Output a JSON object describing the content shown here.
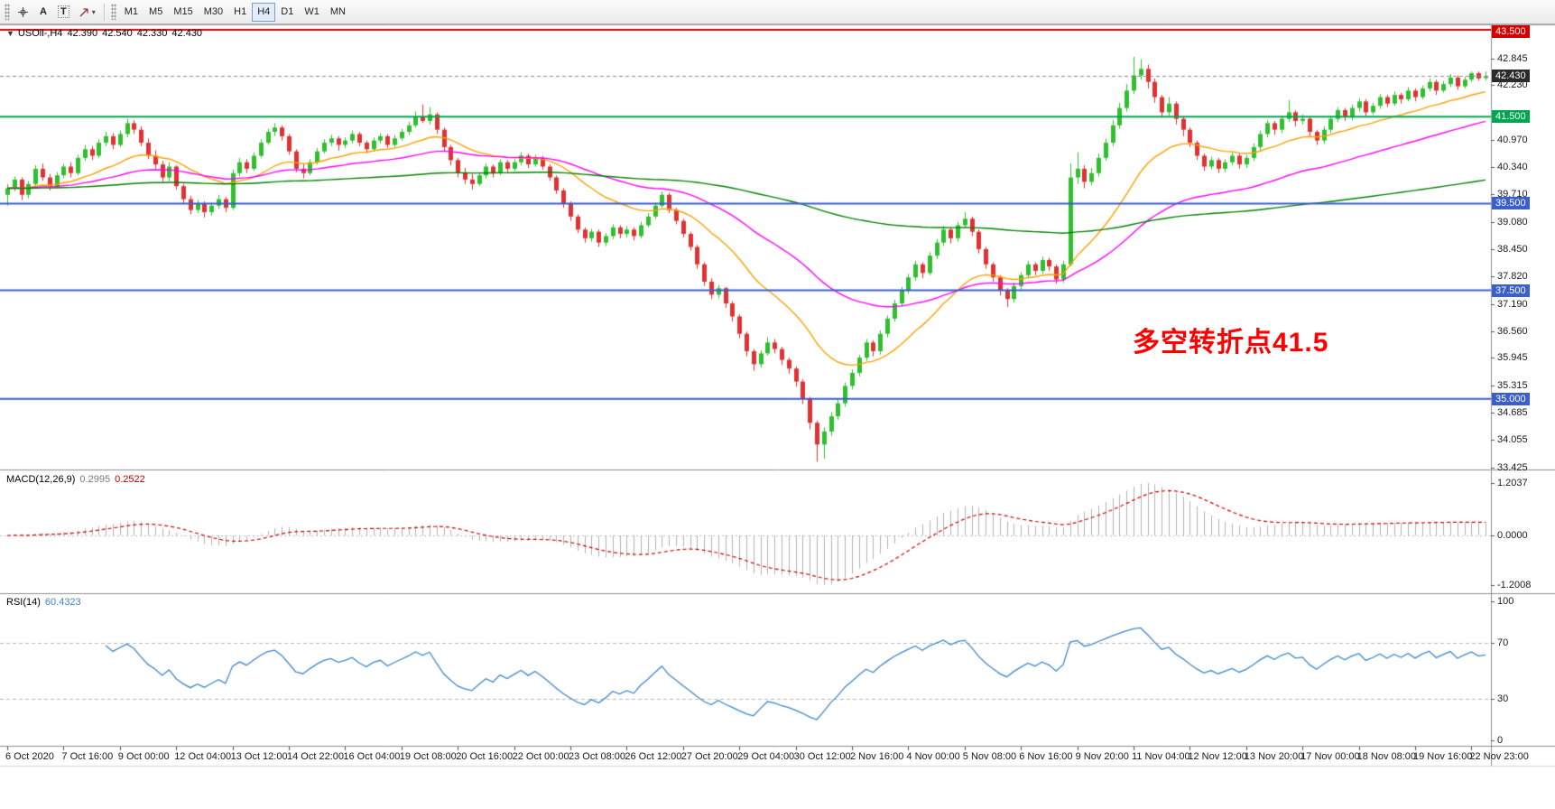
{
  "toolbar": {
    "tools": {
      "text_tool": "A",
      "label_tool": "T"
    },
    "timeframes": [
      "M1",
      "M5",
      "M15",
      "M30",
      "H1",
      "H4",
      "D1",
      "W1",
      "MN"
    ],
    "active_timeframe": "H4"
  },
  "chart": {
    "header": {
      "symbol_period": "USOil-,H4",
      "open": "42.390",
      "high": "42.540",
      "low": "42.330",
      "close": "42.430"
    },
    "annotation": {
      "text": "多空转折点41.5",
      "color": "#ff0000"
    }
  },
  "chart_data": {
    "type": "candlestick",
    "symbol": "USOil-",
    "period": "H4",
    "title": "USOil-,H4 42.390 42.540 42.330 42.430",
    "colors": {
      "up": "#2fbf2f",
      "down": "#e03232"
    },
    "price_axis": {
      "min": 33.425,
      "max": 43.5,
      "ticks": [
        "42.845",
        "42.230",
        "40.970",
        "40.340",
        "39.710",
        "39.080",
        "38.450",
        "37.820",
        "37.190",
        "36.560",
        "35.945",
        "35.315",
        "34.685",
        "34.055",
        "33.425"
      ],
      "boxes": [
        {
          "label": "43.500",
          "color": "#d40000"
        },
        {
          "label": "42.430",
          "color": "#2b2b2b"
        },
        {
          "label": "41.500",
          "color": "#00a651"
        },
        {
          "label": "39.500",
          "color": "#3a5fcd"
        },
        {
          "label": "37.500",
          "color": "#3a5fcd"
        },
        {
          "label": "35.000",
          "color": "#3a5fcd"
        }
      ]
    },
    "hlines": [
      {
        "value": 43.5,
        "color": "#d40000",
        "width": 2,
        "dash": false
      },
      {
        "value": 42.43,
        "color": "#888888",
        "width": 1,
        "dash": true
      },
      {
        "value": 41.5,
        "color": "#00a651",
        "width": 2,
        "dash": false
      },
      {
        "value": 39.5,
        "color": "#3a5fcd",
        "width": 2,
        "dash": false
      },
      {
        "value": 37.5,
        "color": "#3a5fcd",
        "width": 2,
        "dash": false
      },
      {
        "value": 35.0,
        "color": "#3a5fcd",
        "width": 2,
        "dash": false
      }
    ],
    "moving_averages": [
      {
        "period": 20,
        "color": "#ffa000"
      },
      {
        "period": 50,
        "color": "#ff00ff"
      },
      {
        "period": 200,
        "color": "#008000"
      }
    ],
    "bars_per_label": 8,
    "time_labels": [
      "6 Oct 2020",
      "7 Oct 16:00",
      "9 Oct 00:00",
      "12 Oct 04:00",
      "13 Oct 12:00",
      "14 Oct 22:00",
      "16 Oct 04:00",
      "19 Oct 08:00",
      "20 Oct 16:00",
      "22 Oct 00:00",
      "23 Oct 08:00",
      "26 Oct 12:00",
      "27 Oct 20:00",
      "29 Oct 04:00",
      "30 Oct 12:00",
      "2 Nov 16:00",
      "4 Nov 00:00",
      "5 Nov 08:00",
      "6 Nov 16:00",
      "9 Nov 20:00",
      "11 Nov 04:00",
      "12 Nov 12:00",
      "13 Nov 20:00",
      "17 Nov 00:00",
      "18 Nov 08:00",
      "19 Nov 16:00",
      "22 Nov 23:00"
    ],
    "ohlc": [
      [
        39.7,
        39.95,
        39.45,
        39.85
      ],
      [
        39.85,
        40.12,
        39.78,
        40.05
      ],
      [
        40.05,
        40.1,
        39.58,
        39.7
      ],
      [
        39.7,
        40.02,
        39.62,
        39.95
      ],
      [
        39.95,
        40.38,
        39.9,
        40.3
      ],
      [
        40.3,
        40.42,
        40.02,
        40.1
      ],
      [
        40.1,
        40.18,
        39.8,
        39.9
      ],
      [
        39.9,
        40.22,
        39.85,
        40.15
      ],
      [
        40.15,
        40.42,
        40.08,
        40.35
      ],
      [
        40.35,
        40.45,
        40.1,
        40.2
      ],
      [
        40.2,
        40.62,
        40.15,
        40.55
      ],
      [
        40.55,
        40.85,
        40.48,
        40.75
      ],
      [
        40.75,
        40.82,
        40.5,
        40.6
      ],
      [
        40.6,
        40.98,
        40.55,
        40.9
      ],
      [
        40.9,
        41.15,
        40.82,
        41.05
      ],
      [
        41.05,
        41.12,
        40.75,
        40.85
      ],
      [
        40.85,
        41.18,
        40.8,
        41.1
      ],
      [
        41.1,
        41.45,
        41.02,
        41.35
      ],
      [
        41.35,
        41.42,
        41.1,
        41.2
      ],
      [
        41.2,
        41.28,
        40.82,
        40.9
      ],
      [
        40.9,
        41.0,
        40.52,
        40.6
      ],
      [
        40.6,
        40.72,
        40.3,
        40.4
      ],
      [
        40.4,
        40.48,
        40.0,
        40.1
      ],
      [
        40.1,
        40.45,
        40.02,
        40.35
      ],
      [
        40.35,
        40.38,
        39.82,
        39.9
      ],
      [
        39.9,
        39.95,
        39.5,
        39.6
      ],
      [
        39.6,
        39.68,
        39.25,
        39.35
      ],
      [
        39.35,
        39.58,
        39.28,
        39.5
      ],
      [
        39.5,
        39.55,
        39.18,
        39.3
      ],
      [
        39.3,
        39.52,
        39.22,
        39.45
      ],
      [
        39.45,
        39.7,
        39.38,
        39.6
      ],
      [
        39.6,
        39.65,
        39.3,
        39.4
      ],
      [
        39.4,
        40.28,
        39.35,
        40.2
      ],
      [
        40.2,
        40.55,
        40.12,
        40.45
      ],
      [
        40.45,
        40.52,
        40.2,
        40.3
      ],
      [
        40.3,
        40.68,
        40.25,
        40.6
      ],
      [
        40.6,
        40.98,
        40.55,
        40.9
      ],
      [
        40.9,
        41.22,
        40.85,
        41.15
      ],
      [
        41.15,
        41.35,
        41.05,
        41.25
      ],
      [
        41.25,
        41.3,
        40.95,
        41.05
      ],
      [
        41.05,
        41.1,
        40.62,
        40.7
      ],
      [
        40.7,
        40.75,
        40.22,
        40.3
      ],
      [
        40.3,
        40.42,
        40.08,
        40.2
      ],
      [
        40.2,
        40.52,
        40.15,
        40.45
      ],
      [
        40.45,
        40.78,
        40.4,
        40.7
      ],
      [
        40.7,
        40.98,
        40.65,
        40.9
      ],
      [
        40.9,
        41.08,
        40.82,
        41.0
      ],
      [
        41.0,
        41.05,
        40.72,
        40.85
      ],
      [
        40.85,
        41.02,
        40.78,
        40.95
      ],
      [
        40.95,
        41.18,
        40.88,
        41.1
      ],
      [
        41.1,
        41.15,
        40.82,
        40.9
      ],
      [
        40.9,
        40.95,
        40.65,
        40.75
      ],
      [
        40.75,
        41.02,
        40.7,
        40.95
      ],
      [
        40.95,
        41.12,
        40.88,
        41.05
      ],
      [
        41.05,
        41.1,
        40.78,
        40.85
      ],
      [
        40.85,
        41.08,
        40.8,
        41.0
      ],
      [
        41.0,
        41.22,
        40.95,
        41.15
      ],
      [
        41.15,
        41.38,
        41.08,
        41.3
      ],
      [
        41.3,
        41.62,
        41.25,
        41.5
      ],
      [
        41.5,
        41.78,
        41.35,
        41.4
      ],
      [
        41.4,
        41.72,
        41.32,
        41.55
      ],
      [
        41.55,
        41.6,
        41.1,
        41.2
      ],
      [
        41.2,
        41.25,
        40.7,
        40.8
      ],
      [
        40.8,
        40.85,
        40.38,
        40.5
      ],
      [
        40.5,
        40.55,
        40.1,
        40.2
      ],
      [
        40.2,
        40.32,
        39.95,
        40.05
      ],
      [
        40.05,
        40.18,
        39.82,
        39.95
      ],
      [
        39.95,
        40.22,
        39.9,
        40.15
      ],
      [
        40.15,
        40.42,
        40.08,
        40.35
      ],
      [
        40.35,
        40.4,
        40.1,
        40.2
      ],
      [
        40.2,
        40.52,
        40.15,
        40.45
      ],
      [
        40.45,
        40.5,
        40.22,
        40.3
      ],
      [
        40.3,
        40.52,
        40.25,
        40.45
      ],
      [
        40.45,
        40.68,
        40.38,
        40.6
      ],
      [
        40.6,
        40.65,
        40.32,
        40.4
      ],
      [
        40.4,
        40.62,
        40.35,
        40.55
      ],
      [
        40.55,
        40.6,
        40.28,
        40.35
      ],
      [
        40.35,
        40.4,
        40.02,
        40.1
      ],
      [
        40.1,
        40.15,
        39.72,
        39.8
      ],
      [
        39.8,
        39.85,
        39.4,
        39.5
      ],
      [
        39.5,
        39.55,
        39.1,
        39.2
      ],
      [
        39.2,
        39.25,
        38.82,
        38.9
      ],
      [
        38.9,
        38.95,
        38.6,
        38.7
      ],
      [
        38.7,
        38.92,
        38.62,
        38.85
      ],
      [
        38.85,
        38.9,
        38.5,
        38.6
      ],
      [
        38.6,
        38.82,
        38.52,
        38.75
      ],
      [
        38.75,
        39.02,
        38.68,
        38.95
      ],
      [
        38.95,
        39.0,
        38.7,
        38.8
      ],
      [
        38.8,
        38.98,
        38.72,
        38.9
      ],
      [
        38.9,
        38.95,
        38.65,
        38.75
      ],
      [
        38.75,
        39.08,
        38.7,
        39.0
      ],
      [
        39.0,
        39.28,
        38.95,
        39.2
      ],
      [
        39.2,
        39.52,
        39.15,
        39.45
      ],
      [
        39.45,
        39.78,
        39.4,
        39.7
      ],
      [
        39.7,
        39.75,
        39.28,
        39.35
      ],
      [
        39.35,
        39.4,
        39.02,
        39.1
      ],
      [
        39.1,
        39.15,
        38.72,
        38.8
      ],
      [
        38.8,
        38.85,
        38.42,
        38.5
      ],
      [
        38.5,
        38.55,
        38.0,
        38.1
      ],
      [
        38.1,
        38.15,
        37.6,
        37.7
      ],
      [
        37.7,
        37.78,
        37.3,
        37.4
      ],
      [
        37.4,
        37.62,
        37.32,
        37.55
      ],
      [
        37.55,
        37.58,
        37.1,
        37.2
      ],
      [
        37.2,
        37.25,
        36.78,
        36.9
      ],
      [
        36.9,
        36.95,
        36.4,
        36.5
      ],
      [
        36.5,
        36.55,
        35.98,
        36.1
      ],
      [
        36.1,
        36.15,
        35.65,
        35.8
      ],
      [
        35.8,
        36.12,
        35.72,
        36.05
      ],
      [
        36.05,
        36.42,
        36.0,
        36.3
      ],
      [
        36.3,
        36.38,
        36.05,
        36.15
      ],
      [
        36.15,
        36.2,
        35.78,
        35.9
      ],
      [
        35.9,
        35.95,
        35.58,
        35.7
      ],
      [
        35.7,
        35.75,
        35.28,
        35.4
      ],
      [
        35.4,
        35.45,
        34.88,
        35.0
      ],
      [
        35.0,
        35.05,
        34.3,
        34.45
      ],
      [
        34.45,
        34.5,
        33.55,
        33.95
      ],
      [
        33.95,
        34.35,
        33.62,
        34.25
      ],
      [
        34.25,
        34.7,
        34.15,
        34.6
      ],
      [
        34.6,
        35.0,
        34.52,
        34.9
      ],
      [
        34.9,
        35.38,
        34.82,
        35.3
      ],
      [
        35.3,
        35.68,
        35.22,
        35.6
      ],
      [
        35.6,
        36.02,
        35.52,
        35.95
      ],
      [
        35.95,
        36.38,
        35.88,
        36.3
      ],
      [
        36.3,
        36.35,
        35.98,
        36.1
      ],
      [
        36.1,
        36.58,
        36.02,
        36.5
      ],
      [
        36.5,
        36.92,
        36.42,
        36.85
      ],
      [
        36.85,
        37.28,
        36.78,
        37.2
      ],
      [
        37.2,
        37.58,
        37.12,
        37.5
      ],
      [
        37.5,
        37.88,
        37.42,
        37.8
      ],
      [
        37.8,
        38.18,
        37.72,
        38.1
      ],
      [
        38.1,
        38.15,
        37.78,
        37.9
      ],
      [
        37.9,
        38.38,
        37.85,
        38.3
      ],
      [
        38.3,
        38.68,
        38.22,
        38.6
      ],
      [
        38.6,
        38.98,
        38.52,
        38.9
      ],
      [
        38.9,
        38.95,
        38.58,
        38.7
      ],
      [
        38.7,
        39.08,
        38.62,
        39.0
      ],
      [
        39.0,
        39.3,
        38.95,
        39.15
      ],
      [
        39.15,
        39.2,
        38.75,
        38.85
      ],
      [
        38.85,
        38.9,
        38.35,
        38.45
      ],
      [
        38.45,
        38.5,
        38.0,
        38.1
      ],
      [
        38.1,
        38.15,
        37.7,
        37.8
      ],
      [
        37.8,
        37.85,
        37.38,
        37.5
      ],
      [
        37.5,
        37.55,
        37.12,
        37.3
      ],
      [
        37.3,
        37.68,
        37.22,
        37.6
      ],
      [
        37.6,
        37.92,
        37.52,
        37.85
      ],
      [
        37.85,
        38.18,
        37.78,
        38.1
      ],
      [
        38.1,
        38.15,
        37.85,
        37.95
      ],
      [
        37.95,
        38.28,
        37.88,
        38.2
      ],
      [
        38.2,
        38.25,
        37.95,
        38.05
      ],
      [
        38.05,
        38.1,
        37.65,
        37.75
      ],
      [
        37.75,
        38.18,
        37.68,
        38.1
      ],
      [
        38.1,
        40.42,
        38.05,
        40.1
      ],
      [
        40.1,
        40.68,
        39.95,
        40.3
      ],
      [
        40.3,
        40.38,
        39.85,
        40.0
      ],
      [
        40.0,
        40.32,
        39.92,
        40.2
      ],
      [
        40.2,
        40.65,
        40.12,
        40.55
      ],
      [
        40.55,
        41.0,
        40.48,
        40.9
      ],
      [
        40.9,
        41.42,
        40.82,
        41.3
      ],
      [
        41.3,
        41.82,
        41.22,
        41.7
      ],
      [
        41.7,
        42.25,
        41.62,
        42.1
      ],
      [
        42.1,
        42.88,
        42.02,
        42.45
      ],
      [
        42.45,
        42.82,
        42.35,
        42.6
      ],
      [
        42.6,
        42.7,
        42.15,
        42.3
      ],
      [
        42.3,
        42.38,
        41.82,
        41.95
      ],
      [
        41.95,
        42.0,
        41.48,
        41.6
      ],
      [
        41.6,
        41.95,
        41.52,
        41.8
      ],
      [
        41.8,
        41.85,
        41.32,
        41.45
      ],
      [
        41.45,
        41.5,
        41.05,
        41.2
      ],
      [
        41.2,
        41.25,
        40.8,
        40.9
      ],
      [
        40.9,
        40.95,
        40.5,
        40.6
      ],
      [
        40.6,
        40.65,
        40.25,
        40.35
      ],
      [
        40.35,
        40.58,
        40.28,
        40.5
      ],
      [
        40.5,
        40.55,
        40.2,
        40.3
      ],
      [
        40.3,
        40.52,
        40.22,
        40.45
      ],
      [
        40.45,
        40.68,
        40.38,
        40.6
      ],
      [
        40.6,
        40.65,
        40.3,
        40.4
      ],
      [
        40.4,
        40.62,
        40.32,
        40.55
      ],
      [
        40.55,
        40.88,
        40.48,
        40.8
      ],
      [
        40.8,
        41.18,
        40.72,
        41.1
      ],
      [
        41.1,
        41.42,
        41.02,
        41.35
      ],
      [
        41.35,
        41.4,
        41.08,
        41.2
      ],
      [
        41.2,
        41.52,
        41.12,
        41.45
      ],
      [
        41.45,
        41.88,
        41.38,
        41.6
      ],
      [
        41.6,
        41.65,
        41.28,
        41.4
      ],
      [
        41.4,
        41.55,
        41.32,
        41.45
      ],
      [
        41.45,
        41.5,
        41.05,
        41.15
      ],
      [
        41.15,
        41.2,
        40.85,
        40.95
      ],
      [
        40.95,
        41.28,
        40.88,
        41.2
      ],
      [
        41.2,
        41.52,
        41.12,
        41.45
      ],
      [
        41.45,
        41.72,
        41.38,
        41.65
      ],
      [
        41.65,
        41.7,
        41.4,
        41.5
      ],
      [
        41.5,
        41.78,
        41.42,
        41.7
      ],
      [
        41.7,
        41.92,
        41.62,
        41.85
      ],
      [
        41.85,
        41.9,
        41.52,
        41.6
      ],
      [
        41.6,
        41.82,
        41.55,
        41.75
      ],
      [
        41.75,
        42.02,
        41.68,
        41.95
      ],
      [
        41.95,
        42.0,
        41.72,
        41.8
      ],
      [
        41.8,
        42.08,
        41.75,
        42.0
      ],
      [
        42.0,
        42.05,
        41.8,
        41.9
      ],
      [
        41.9,
        42.18,
        41.85,
        42.1
      ],
      [
        42.1,
        42.15,
        41.85,
        41.95
      ],
      [
        41.95,
        42.22,
        41.9,
        42.15
      ],
      [
        42.15,
        42.38,
        42.08,
        42.3
      ],
      [
        42.3,
        42.35,
        42.0,
        42.1
      ],
      [
        42.1,
        42.32,
        42.05,
        42.25
      ],
      [
        42.25,
        42.48,
        42.18,
        42.4
      ],
      [
        42.4,
        42.45,
        42.12,
        42.2
      ],
      [
        42.2,
        42.42,
        42.15,
        42.35
      ],
      [
        42.35,
        42.54,
        42.3,
        42.5
      ],
      [
        42.5,
        42.54,
        42.33,
        42.38
      ],
      [
        42.39,
        42.54,
        42.33,
        42.43
      ]
    ],
    "macd": {
      "label": "MACD(12,26,9)",
      "params": [
        12,
        26,
        9
      ],
      "value": "0.2995",
      "signal_value": "0.2522",
      "axis_labels": [
        "1.2037",
        "0.0000",
        "-1.2008"
      ],
      "histogram_color": "#b0b0b0",
      "signal_color": "#cc0000"
    },
    "rsi": {
      "label": "RSI(14)",
      "period": 14,
      "value": "60.4323",
      "levels": [
        70,
        30
      ],
      "axis_labels": [
        "100",
        "70",
        "30",
        "0"
      ],
      "line_color": "#3e86ca"
    }
  }
}
